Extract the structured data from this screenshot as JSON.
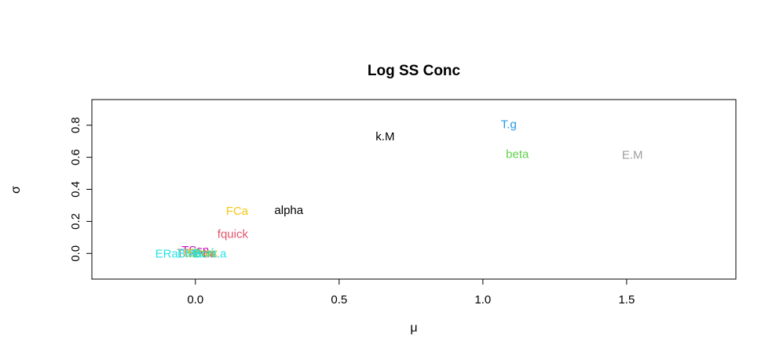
{
  "chart_data": {
    "type": "scatter",
    "title": "Log SS Conc",
    "xlabel": "μ",
    "ylabel": "σ",
    "xlim": [
      -0.36,
      1.88
    ],
    "ylim": [
      -0.16,
      0.96
    ],
    "xticks": [
      0.0,
      0.5,
      1.0,
      1.5
    ],
    "xtick_labels": [
      "0.0",
      "0.5",
      "1.0",
      "1.5"
    ],
    "yticks": [
      0.0,
      0.2,
      0.4,
      0.6,
      0.8
    ],
    "ytick_labels": [
      "0.0",
      "0.2",
      "0.4",
      "0.6",
      "0.8"
    ],
    "grid": false,
    "points": [
      {
        "label": "T.g",
        "x": 1.09,
        "y": 0.8,
        "color": "#2297E6"
      },
      {
        "label": "k.M",
        "x": 0.66,
        "y": 0.725,
        "color": "#000000"
      },
      {
        "label": "beta",
        "x": 1.12,
        "y": 0.615,
        "color": "#61D04F"
      },
      {
        "label": "E.M",
        "x": 1.52,
        "y": 0.61,
        "color": "#9E9E9E"
      },
      {
        "label": "FCa",
        "x": 0.145,
        "y": 0.26,
        "color": "#F5C710"
      },
      {
        "label": "alpha",
        "x": 0.325,
        "y": 0.265,
        "color": "#000000"
      },
      {
        "label": "fquick",
        "x": 0.13,
        "y": 0.115,
        "color": "#DF536B"
      },
      {
        "label": "TSsn",
        "x": 0.0,
        "y": 0.015,
        "color": "#CD0BBC"
      },
      {
        "label": "TE",
        "x": -0.02,
        "y": 0.0,
        "color": "#28E2E5"
      },
      {
        "label": "TBmax",
        "x": 0.0,
        "y": 0.0,
        "color": "#9E9E9E"
      },
      {
        "label": "tBmax",
        "x": 0.02,
        "y": 0.0,
        "color": "#F5C710"
      },
      {
        "label": "Bcri",
        "x": 0.03,
        "y": 0.0,
        "color": "#61D04F"
      },
      {
        "label": "t.a",
        "x": 0.05,
        "y": -0.005,
        "color": "#DF536B"
      },
      {
        "label": "ERa",
        "x": -0.1,
        "y": -0.005,
        "color": "#28E2E5"
      },
      {
        "label": "BMa",
        "x": -0.02,
        "y": -0.005,
        "color": "#28E2E5"
      },
      {
        "label": "Bcrit.a",
        "x": 0.05,
        "y": -0.005,
        "color": "#28E2E5"
      }
    ]
  }
}
